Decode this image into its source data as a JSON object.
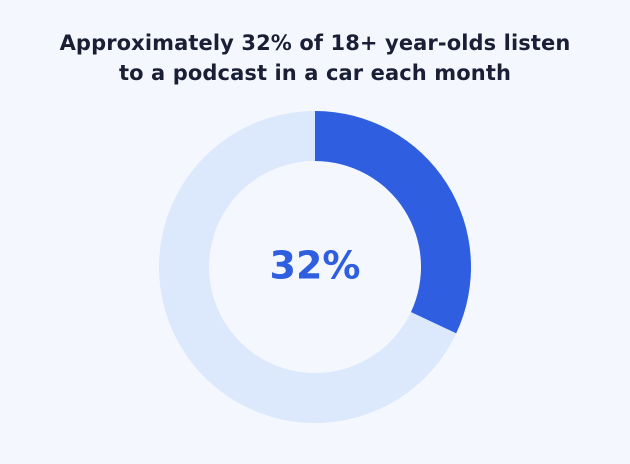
{
  "title_lines": [
    "Approximately 32% of 18+ year-olds listen",
    "to a podcast in a car each month"
  ],
  "center_label": "32%",
  "colors": {
    "background": "#f4f8fe",
    "highlight": "#2f5fe0",
    "remainder": "#dce8fb",
    "title": "#1a1f36"
  },
  "chart_data": {
    "type": "pie",
    "variant": "donut",
    "title": "Approximately 32% of 18+ year-olds listen to a podcast in a car each month",
    "slices": [
      {
        "value": 32
      },
      {
        "value": 68
      }
    ],
    "center_text": "32%"
  }
}
